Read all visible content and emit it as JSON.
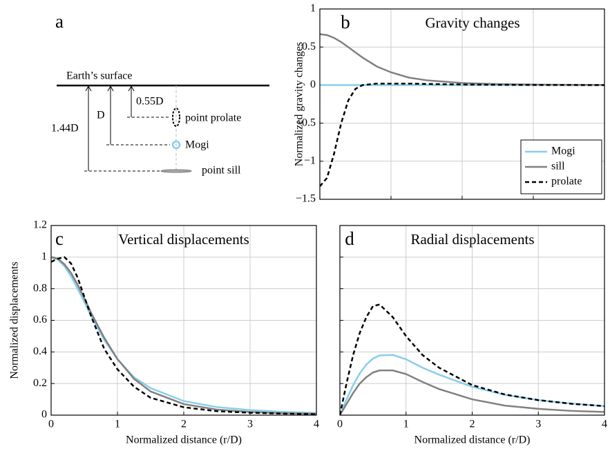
{
  "diagram": {
    "panel_label": "a",
    "surface": "Earth’s surface",
    "depths": [
      "0.55D",
      "D",
      "1.44D"
    ],
    "sources": [
      "point prolate",
      "Mogi",
      "point sill"
    ]
  },
  "chart_data": [
    {
      "type": "line",
      "panel_label": "b",
      "title": "Gravity changes",
      "ylabel": "Normalized gravity changes",
      "x": [
        0,
        0.1,
        0.2,
        0.3,
        0.4,
        0.5,
        0.6,
        0.8,
        1,
        1.25,
        1.5,
        2,
        2.5,
        3,
        3.5,
        4
      ],
      "series": [
        {
          "name": "Mogi",
          "color": "#87ceeb",
          "dash": false,
          "values": [
            0,
            0,
            0,
            0,
            0,
            0,
            0,
            0,
            0,
            0,
            0,
            0,
            0,
            0,
            0,
            0
          ]
        },
        {
          "name": "sill",
          "color": "#808080",
          "dash": false,
          "values": [
            0.67,
            0.657,
            0.62,
            0.565,
            0.498,
            0.429,
            0.362,
            0.245,
            0.168,
            0.099,
            0.063,
            0.027,
            0.013,
            0.007,
            0.004,
            0.002
          ]
        },
        {
          "name": "prolate",
          "color": "#000000",
          "dash": true,
          "values": [
            -1.33,
            -1.22,
            -0.9,
            -0.5,
            -0.2,
            -0.05,
            0,
            0.02,
            0.02,
            0.02,
            0.015,
            0.008,
            0.004,
            0.002,
            0.001,
            0
          ]
        }
      ],
      "xlim": [
        0,
        4
      ],
      "ylim": [
        -1.5,
        1
      ],
      "xticks": [
        0,
        1,
        2,
        3,
        4
      ],
      "yticks": [
        {
          "value": -1.5,
          "label": "−1.5"
        },
        {
          "value": -1,
          "label": "−1"
        },
        {
          "value": -0.5,
          "label": "−0.5"
        },
        0,
        0.5,
        1
      ],
      "xtick_labels": false,
      "ytick_labels": true,
      "grid": true,
      "legend": "lower right"
    },
    {
      "type": "line",
      "panel_label": "c",
      "title": "Vertical displacements",
      "xlabel": "Normalized distance (r/D)",
      "ylabel": "Normalized displacements",
      "x": [
        0,
        0.1,
        0.2,
        0.3,
        0.4,
        0.5,
        0.6,
        0.8,
        1,
        1.25,
        1.5,
        2,
        2.5,
        3,
        3.5,
        4
      ],
      "series": [
        {
          "color": "#87ceeb",
          "dash": false,
          "values": [
            1,
            0.985,
            0.943,
            0.879,
            0.8,
            0.716,
            0.63,
            0.477,
            0.354,
            0.24,
            0.171,
            0.089,
            0.051,
            0.032,
            0.021,
            0.014
          ]
        },
        {
          "color": "#808080",
          "dash": false,
          "values": [
            1,
            0.99,
            0.955,
            0.9,
            0.825,
            0.74,
            0.65,
            0.49,
            0.355,
            0.23,
            0.15,
            0.07,
            0.035,
            0.02,
            0.012,
            0.008
          ]
        },
        {
          "color": "#000000",
          "dash": true,
          "values": [
            0.97,
            0.99,
            1,
            0.96,
            0.87,
            0.75,
            0.63,
            0.42,
            0.29,
            0.18,
            0.11,
            0.05,
            0.025,
            0.015,
            0.01,
            0.006
          ]
        }
      ],
      "xlim": [
        0,
        4
      ],
      "ylim": [
        0,
        1.2
      ],
      "xticks": [
        0,
        1,
        2,
        3,
        4
      ],
      "yticks": [
        0,
        0.2,
        0.4,
        0.6,
        0.8,
        1,
        1.2
      ],
      "xtick_labels": true,
      "ytick_labels": true,
      "grid": true
    },
    {
      "type": "line",
      "panel_label": "d",
      "title": "Radial displacements",
      "xlabel": "Normalized distance (r/D)",
      "x": [
        0,
        0.1,
        0.2,
        0.3,
        0.4,
        0.5,
        0.6,
        0.8,
        1,
        1.25,
        1.5,
        2,
        2.5,
        3,
        3.5,
        4
      ],
      "series": [
        {
          "color": "#87ceeb",
          "dash": false,
          "values": [
            0,
            0.0985,
            0.189,
            0.264,
            0.32,
            0.358,
            0.378,
            0.381,
            0.354,
            0.3,
            0.256,
            0.179,
            0.128,
            0.095,
            0.073,
            0.057
          ]
        },
        {
          "color": "#808080",
          "dash": false,
          "values": [
            0,
            0.07,
            0.14,
            0.2,
            0.24,
            0.27,
            0.283,
            0.283,
            0.26,
            0.21,
            0.165,
            0.1,
            0.06,
            0.04,
            0.027,
            0.02
          ]
        },
        {
          "color": "#000000",
          "dash": true,
          "values": [
            0,
            0.2,
            0.38,
            0.52,
            0.62,
            0.69,
            0.7,
            0.62,
            0.5,
            0.38,
            0.3,
            0.19,
            0.13,
            0.095,
            0.072,
            0.057
          ]
        }
      ],
      "xlim": [
        0,
        4
      ],
      "ylim": [
        0,
        1.2
      ],
      "xticks": [
        0,
        1,
        2,
        3,
        4
      ],
      "yticks": [
        0,
        0.2,
        0.4,
        0.6,
        0.8,
        1,
        1.2
      ],
      "xtick_labels": true,
      "ytick_labels": false,
      "grid": true
    }
  ]
}
